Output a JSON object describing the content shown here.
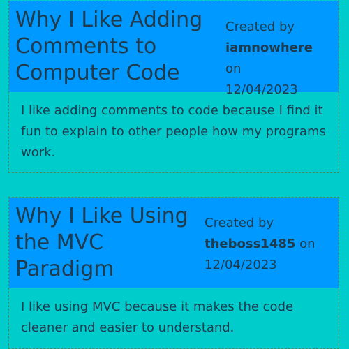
{
  "posts": [
    {
      "title": "Why I Like Adding Comments to Computer Code",
      "created_by_label": "Created by",
      "author": "iamnowhere",
      "on_label": "on",
      "date": "12/04/2023",
      "body": "I like adding comments to code because I find it fun to explain to other people how my programs work."
    },
    {
      "title": "Why I Like Using the MVC Paradigm",
      "created_by_label": "Created by",
      "author": "theboss1485",
      "on_label": "on",
      "date": "12/04/2023",
      "body": "I like using MVC because it makes the code cleaner and easier to understand."
    }
  ],
  "colors": {
    "page_background": "#00cccc",
    "header_background": "#0099ff",
    "text": "#1f3b4d",
    "border": "#4a8a5a"
  }
}
